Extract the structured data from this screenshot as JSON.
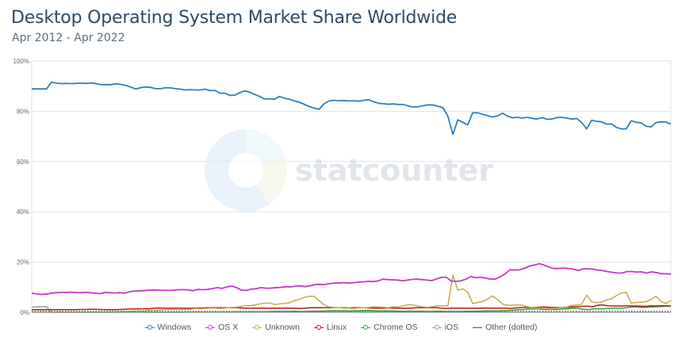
{
  "header": {
    "title": "Desktop Operating System Market Share Worldwide",
    "subtitle": "Apr 2012 - Apr 2022"
  },
  "watermark": {
    "text": "statcounter",
    "logo_icon": "statcounter-pie-logo"
  },
  "colors": {
    "Windows": "#2f7ebd",
    "OS X": "#c837c8",
    "Unknown": "#c9a84a",
    "Linux": "#b21b1b",
    "Chrome OS": "#2ea32e",
    "iOS": "#999999",
    "Other (dotted)": "#555555",
    "grid": "#dde3ea",
    "axis_text": "#666666"
  },
  "chart_data": {
    "type": "line",
    "title": "Desktop Operating System Market Share Worldwide",
    "subtitle": "Apr 2012 - Apr 2022",
    "ylim": [
      0,
      100
    ],
    "yticks": [
      "0%",
      "20%",
      "40%",
      "60%",
      "80%",
      "100%"
    ],
    "ytick_values": [
      0,
      20,
      40,
      60,
      80,
      100
    ],
    "x_start": "2012-04",
    "x_end": "2022-04",
    "grid": true,
    "legend_position": "bottom",
    "series": [
      {
        "name": "Windows",
        "values": [
          88.9,
          88.9,
          88.9,
          88.9,
          91.6,
          91.2,
          91.0,
          91.1,
          91.0,
          91.1,
          91.2,
          91.1,
          91.3,
          91.0,
          90.6,
          90.6,
          90.6,
          90.9,
          90.7,
          90.3,
          89.6,
          88.9,
          89.4,
          89.7,
          89.5,
          89.0,
          89.0,
          89.4,
          89.3,
          89.0,
          88.8,
          88.5,
          88.6,
          88.5,
          88.5,
          88.8,
          88.2,
          88.3,
          87.2,
          87.2,
          86.3,
          86.4,
          87.4,
          88.1,
          87.6,
          86.7,
          85.9,
          84.9,
          85.0,
          84.8,
          85.9,
          85.2,
          84.8,
          84.1,
          83.6,
          82.8,
          81.9,
          81.3,
          80.8,
          83.0,
          84.1,
          84.4,
          84.2,
          84.3,
          84.1,
          84.2,
          84.0,
          84.4,
          84.6,
          83.8,
          83.2,
          83.0,
          82.8,
          82.9,
          82.7,
          82.7,
          82.1,
          81.7,
          81.8,
          82.2,
          82.6,
          82.5,
          82.0,
          81.4,
          78.0,
          70.8,
          76.6,
          75.6,
          74.6,
          79.4,
          79.4,
          78.8,
          78.3,
          77.7,
          78.1,
          79.2,
          78.1,
          77.4,
          77.6,
          77.3,
          77.6,
          77.2,
          76.9,
          77.5,
          76.8,
          76.9,
          77.5,
          77.6,
          77.3,
          76.9,
          77.1,
          75.5,
          73.0,
          76.4,
          76.0,
          75.8,
          74.9,
          75.0,
          73.6,
          73.0,
          73.0,
          76.2,
          75.6,
          75.4,
          74.0,
          73.8,
          75.5,
          75.8,
          75.7,
          74.9
        ]
      },
      {
        "name": "OS X",
        "values": [
          7.6,
          7.3,
          7.1,
          7.2,
          7.6,
          7.8,
          7.9,
          7.9,
          8.0,
          7.8,
          7.8,
          7.9,
          7.8,
          7.6,
          7.4,
          7.9,
          7.8,
          7.7,
          7.8,
          7.6,
          8.1,
          8.5,
          8.5,
          8.6,
          8.8,
          8.9,
          8.8,
          8.7,
          8.7,
          8.8,
          9.0,
          9.0,
          8.9,
          8.6,
          9.1,
          9.0,
          9.1,
          9.4,
          9.8,
          9.5,
          10.1,
          10.4,
          9.8,
          8.8,
          8.7,
          9.2,
          9.4,
          9.8,
          9.6,
          9.6,
          9.8,
          9.9,
          10.2,
          10.1,
          10.4,
          10.5,
          10.2,
          10.5,
          11.0,
          11.1,
          11.0,
          11.4,
          11.6,
          11.6,
          11.8,
          11.6,
          11.8,
          12.0,
          12.1,
          12.3,
          12.2,
          12.5,
          13.2,
          13.0,
          12.9,
          12.8,
          12.5,
          12.8,
          13.1,
          13.2,
          13.0,
          12.8,
          12.6,
          13.3,
          13.9,
          13.9,
          12.4,
          12.3,
          12.5,
          13.2,
          14.2,
          13.8,
          13.9,
          13.6,
          13.2,
          13.2,
          14.1,
          15.2,
          16.9,
          16.8,
          16.9,
          17.5,
          18.4,
          18.8,
          19.3,
          18.8,
          18.0,
          17.4,
          17.4,
          17.6,
          17.4,
          17.2,
          16.6,
          17.3,
          17.3,
          17.2,
          16.8,
          16.6,
          16.2,
          15.9,
          15.6,
          15.6,
          16.2,
          16.2,
          16.0,
          16.1,
          15.6,
          16.1,
          15.8,
          15.4,
          15.3,
          15.2
        ]
      },
      {
        "name": "Unknown",
        "values": [
          0.1,
          0.1,
          0.1,
          0.1,
          0.1,
          0.1,
          0.1,
          0.1,
          0.1,
          0.1,
          0.1,
          0.1,
          0.1,
          0.1,
          0.1,
          0.1,
          0.2,
          0.2,
          0.3,
          0.3,
          0.4,
          0.5,
          0.5,
          0.6,
          0.8,
          0.8,
          0.9,
          1.0,
          1.1,
          1.1,
          1.0,
          1.1,
          1.2,
          1.5,
          1.4,
          1.5,
          1.6,
          1.6,
          1.5,
          1.6,
          1.9,
          2.0,
          2.2,
          2.6,
          2.6,
          2.9,
          3.3,
          3.6,
          3.7,
          3.1,
          3.3,
          3.5,
          3.8,
          4.6,
          5.1,
          5.9,
          6.4,
          6.3,
          4.6,
          3.0,
          2.1,
          1.9,
          1.8,
          1.6,
          1.6,
          1.5,
          1.7,
          1.8,
          1.9,
          2.2,
          2.1,
          2.0,
          1.8,
          2.2,
          2.1,
          2.6,
          3.0,
          2.9,
          2.5,
          2.1,
          2.0,
          2.3,
          2.6,
          2.5,
          2.6,
          14.8,
          8.8,
          9.3,
          8.0,
          3.4,
          3.9,
          4.3,
          5.2,
          6.5,
          5.1,
          3.3,
          2.8,
          2.8,
          2.9,
          2.8,
          2.3,
          1.8,
          1.7,
          1.6,
          1.5,
          1.4,
          1.6,
          2.0,
          2.1,
          2.7,
          2.9,
          3.2,
          6.8,
          4.2,
          3.8,
          4.1,
          4.9,
          5.4,
          6.6,
          7.7,
          7.9,
          3.7,
          3.9,
          4.0,
          4.2,
          5.1,
          6.4,
          4.3,
          3.5,
          4.7
        ]
      },
      {
        "name": "Linux",
        "values": [
          1.0,
          1.0,
          1.0,
          1.0,
          1.0,
          1.0,
          1.0,
          1.0,
          1.0,
          1.0,
          1.1,
          1.1,
          1.2,
          1.2,
          1.1,
          1.0,
          1.0,
          1.0,
          1.1,
          1.2,
          1.3,
          1.3,
          1.4,
          1.4,
          1.4,
          1.6,
          1.7,
          1.6,
          1.6,
          1.6,
          1.6,
          1.6,
          1.6,
          1.6,
          1.7,
          1.7,
          1.8,
          1.8,
          1.8,
          1.8,
          1.8,
          1.8,
          1.8,
          1.7,
          1.6,
          1.6,
          1.6,
          1.7,
          1.6,
          1.6,
          1.6,
          1.6,
          1.7,
          1.6,
          1.6,
          1.5,
          1.6,
          1.8,
          1.8,
          1.8,
          1.8,
          1.8,
          1.8,
          1.8,
          1.8,
          1.7,
          1.8,
          1.8,
          1.8,
          1.7,
          1.7,
          1.6,
          1.6,
          1.7,
          1.7,
          1.6,
          1.6,
          1.6,
          1.7,
          1.8,
          1.8,
          1.8,
          1.8,
          1.8,
          1.6,
          1.5,
          1.6,
          1.6,
          1.6,
          1.6,
          1.6,
          1.6,
          1.6,
          1.7,
          1.6,
          1.6,
          1.6,
          1.6,
          1.5,
          1.7,
          1.8,
          1.9,
          1.9,
          1.9,
          2.0,
          2.1,
          2.0,
          1.9,
          1.9,
          1.9,
          2.0,
          2.2,
          2.2,
          2.4,
          2.4,
          2.2,
          2.8,
          2.9,
          2.6,
          2.5,
          2.5,
          2.5,
          2.6,
          2.5,
          2.5,
          2.4,
          2.4,
          2.6,
          2.5,
          2.6,
          2.6,
          2.5
        ]
      },
      {
        "name": "Chrome OS",
        "values": [
          0.0,
          0.0,
          0.0,
          0.0,
          0.0,
          0.0,
          0.0,
          0.0,
          0.0,
          0.0,
          0.0,
          0.0,
          0.0,
          0.0,
          0.0,
          0.0,
          0.0,
          0.0,
          0.0,
          0.0,
          0.0,
          0.0,
          0.0,
          0.0,
          0.0,
          0.0,
          0.0,
          0.0,
          0.0,
          0.0,
          0.0,
          0.0,
          0.1,
          0.1,
          0.1,
          0.1,
          0.1,
          0.1,
          0.1,
          0.1,
          0.1,
          0.1,
          0.2,
          0.2,
          0.2,
          0.2,
          0.2,
          0.2,
          0.2,
          0.3,
          0.3,
          0.3,
          0.3,
          0.3,
          0.4,
          0.3,
          0.3,
          0.4,
          0.4,
          0.4,
          0.5,
          0.6,
          0.6,
          0.6,
          0.6,
          0.5,
          0.6,
          0.6,
          0.7,
          0.7,
          0.6,
          0.5,
          0.5,
          0.5,
          0.5,
          0.4,
          0.4,
          0.4,
          0.4,
          0.4,
          0.4,
          0.3,
          0.3,
          0.4,
          0.4,
          0.3,
          0.3,
          0.3,
          0.3,
          0.4,
          0.4,
          0.4,
          0.4,
          0.5,
          0.5,
          0.5,
          0.6,
          0.6,
          0.7,
          0.9,
          1.0,
          1.1,
          1.3,
          1.3,
          1.3,
          1.1,
          1.1,
          1.1,
          1.2,
          1.3,
          1.4,
          1.6,
          1.5,
          1.2,
          1.0,
          1.3,
          1.4,
          1.4,
          1.5,
          1.6,
          1.6,
          1.6,
          1.8,
          2.1,
          2.1,
          2.0,
          2.0,
          2.1,
          2.2,
          2.3,
          2.4,
          2.4
        ]
      },
      {
        "name": "iOS",
        "values": [
          2.0,
          2.2,
          2.2,
          2.2,
          0.0,
          0.0,
          0.0,
          0.0,
          0.0,
          0.0,
          0.0,
          0.0,
          0.0,
          0.0,
          0.0,
          0.0,
          0.0,
          0.0,
          0.0,
          0.0,
          0.0,
          0.0,
          0.0,
          0.0,
          0.0,
          0.0,
          0.0,
          0.0,
          0.0,
          0.0,
          0.0,
          0.0,
          0.0,
          0.0,
          0.0,
          0.0,
          0.0,
          0.0,
          0.0,
          0.0,
          0.0,
          0.0,
          0.0,
          0.0,
          0.0,
          0.0,
          0.0,
          0.0,
          0.0,
          0.0,
          0.0,
          0.0,
          0.0,
          0.0,
          0.0,
          0.0,
          0.0,
          0.0,
          0.0,
          0.0,
          0.0,
          0.0,
          0.0,
          0.0,
          0.0,
          0.0,
          0.0,
          0.0,
          0.0,
          0.0,
          0.0,
          0.0,
          0.0,
          0.0,
          0.0,
          0.0,
          0.0,
          0.0,
          0.0,
          0.0,
          0.0,
          0.0,
          0.0,
          0.0,
          0.0,
          0.0,
          0.0,
          0.0,
          0.0,
          0.0,
          0.0,
          0.0,
          0.0,
          0.0,
          0.0,
          0.0,
          0.0,
          0.0,
          0.0,
          0.0,
          0.0,
          0.0,
          0.0,
          0.0,
          0.0,
          0.0,
          0.0,
          0.0,
          0.0,
          0.0,
          0.0,
          0.0,
          0.0,
          0.0,
          0.0,
          0.0,
          0.0,
          0.0,
          0.0,
          0.0,
          0.0,
          0.0,
          0.0,
          0.0,
          0.0,
          0.0,
          0.0,
          0.0,
          0.0,
          0.0
        ]
      },
      {
        "name": "Other (dotted)",
        "values": [
          0.3,
          0.3,
          0.3,
          0.3,
          0.3,
          0.3,
          0.3,
          0.3,
          0.3,
          0.3,
          0.3,
          0.3,
          0.3,
          0.3,
          0.3,
          0.3,
          0.3,
          0.3,
          0.3,
          0.3,
          0.3,
          0.3,
          0.3,
          0.3,
          0.3,
          0.3,
          0.3,
          0.3,
          0.3,
          0.3,
          0.3,
          0.3,
          0.3,
          0.3,
          0.3,
          0.3,
          0.3,
          0.3,
          0.3,
          0.3,
          0.3,
          0.3,
          0.3,
          0.3,
          0.3,
          0.3,
          0.3,
          0.3,
          0.3,
          0.3,
          0.3,
          0.3,
          0.3,
          0.3,
          0.3,
          0.3,
          0.3,
          0.3,
          0.3,
          0.3,
          0.3,
          0.3,
          0.3,
          0.3,
          0.3,
          0.3,
          0.3,
          0.3,
          0.3,
          0.3,
          0.3,
          0.3,
          0.3,
          0.3,
          0.3,
          0.3,
          0.3,
          0.3,
          0.3,
          0.3,
          0.3,
          0.3,
          0.3,
          0.3,
          0.3,
          0.3,
          0.3,
          0.3,
          0.3,
          0.3,
          0.3,
          0.3,
          0.3,
          0.3,
          0.3,
          0.3,
          0.3,
          0.3,
          0.3,
          0.3,
          0.3,
          0.3,
          0.3,
          0.3,
          0.3,
          0.3,
          0.3,
          0.3,
          0.3,
          0.3,
          0.3,
          0.3,
          0.3,
          0.3,
          0.3,
          0.3,
          0.3,
          0.3,
          0.3,
          0.3,
          0.3,
          0.3,
          0.3,
          0.3,
          0.3,
          0.3,
          0.3,
          0.3,
          0.3,
          0.3
        ]
      }
    ]
  },
  "legend": [
    {
      "label": "Windows",
      "key": "Windows"
    },
    {
      "label": "OS X",
      "key": "OS X"
    },
    {
      "label": "Unknown",
      "key": "Unknown"
    },
    {
      "label": "Linux",
      "key": "Linux"
    },
    {
      "label": "Chrome OS",
      "key": "Chrome OS"
    },
    {
      "label": "iOS",
      "key": "iOS"
    },
    {
      "label": "Other (dotted)",
      "key": "Other (dotted)"
    }
  ]
}
